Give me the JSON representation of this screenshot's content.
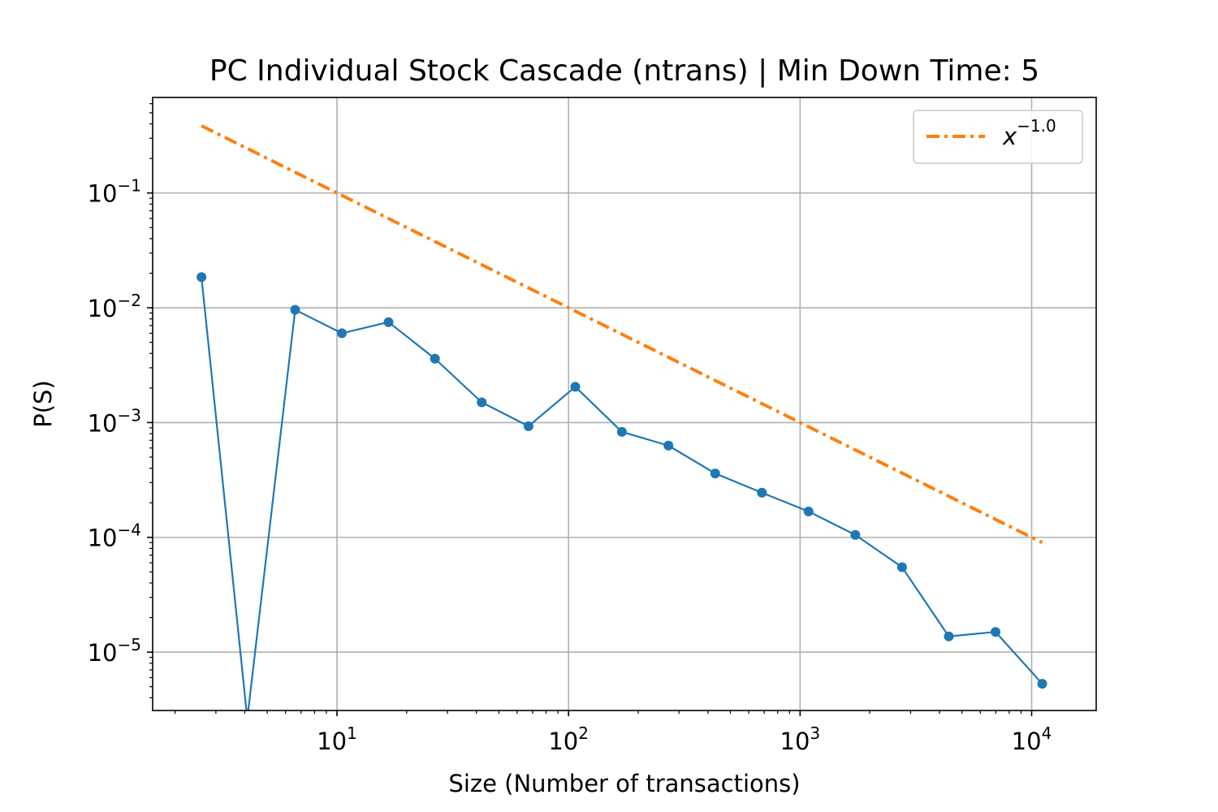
{
  "chart_data": {
    "type": "line",
    "title": "PC Individual Stock Cascade (ntrans) | Min Down Time: 5",
    "xlabel": "Size (Number of transactions)",
    "ylabel": "P(S)",
    "xscale": "log",
    "yscale": "log",
    "xlim": [
      1.6,
      19000
    ],
    "ylim": [
      3.1e-06,
      0.68
    ],
    "grid": true,
    "legend_position": "top-right",
    "x_ticks": [
      {
        "value": 10,
        "base": "10",
        "exp": "1"
      },
      {
        "value": 100,
        "base": "10",
        "exp": "2"
      },
      {
        "value": 1000,
        "base": "10",
        "exp": "3"
      },
      {
        "value": 10000,
        "base": "10",
        "exp": "4"
      }
    ],
    "y_ticks": [
      {
        "value": 0.1,
        "base": "10",
        "exp": "−1"
      },
      {
        "value": 0.01,
        "base": "10",
        "exp": "−2"
      },
      {
        "value": 0.001,
        "base": "10",
        "exp": "−3"
      },
      {
        "value": 0.0001,
        "base": "10",
        "exp": "−4"
      },
      {
        "value": 1e-05,
        "base": "10",
        "exp": "−5"
      }
    ],
    "series": [
      {
        "color": "#1f77b4",
        "style": "solid-with-dots",
        "x": [
          2.6,
          4.1,
          6.6,
          10.5,
          16.7,
          26.5,
          42.2,
          67.2,
          107,
          170,
          270,
          430,
          684,
          1088,
          1732,
          2756,
          4387,
          6982,
          11110
        ],
        "y": [
          0.0185,
          0,
          0.0096,
          0.006,
          0.0075,
          0.0036,
          0.0015,
          0.00093,
          0.00205,
          0.00083,
          0.00063,
          0.00036,
          0.000245,
          0.000168,
          0.000105,
          5.5e-05,
          1.37e-05,
          1.5e-05,
          5.3e-06
        ]
      },
      {
        "name": "x^{-1.0}",
        "color": "#ff7f0e",
        "style": "dash-dot",
        "x": [
          2.6,
          11110
        ],
        "y": [
          0.385,
          9e-05
        ]
      }
    ],
    "legend": {
      "base": "x",
      "exponent": "−1.0"
    }
  }
}
